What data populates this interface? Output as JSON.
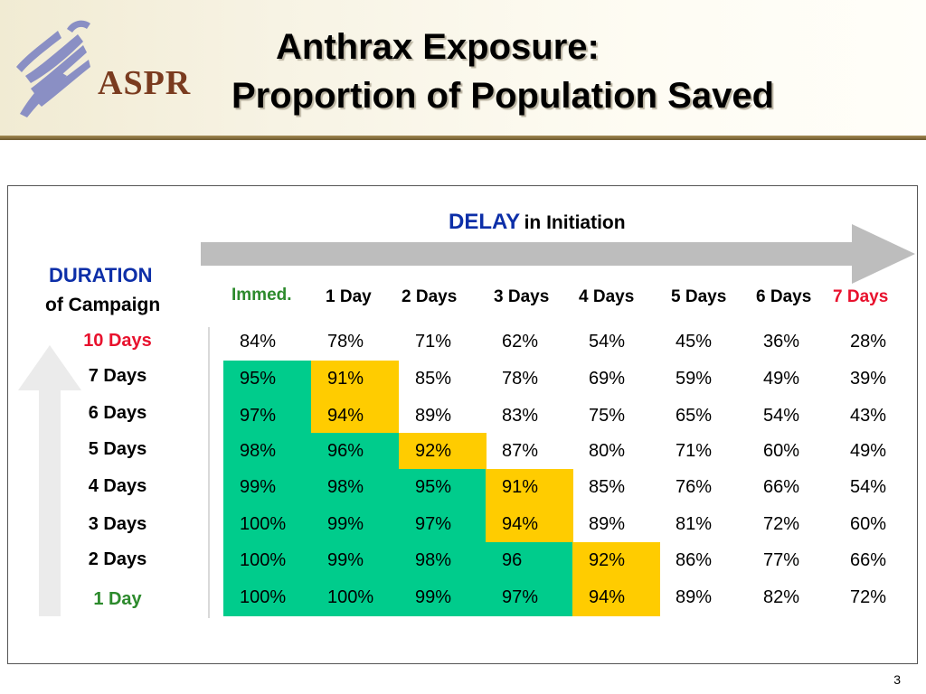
{
  "header": {
    "logo_text": "ASPR",
    "title_line1": "Anthrax Exposure:",
    "title_line2": "Proportion of Population Saved"
  },
  "delay_axis": {
    "label_emphasis": "DELAY",
    "label_rest": "in Initiation"
  },
  "duration_axis": {
    "label_emphasis": "DURATION",
    "label_rest": "of Campaign"
  },
  "colors": {
    "green": "#00cc8c",
    "yellow": "#ffcc00",
    "blue_label": "#0d2fa8",
    "red_label": "#e8112d",
    "green_label": "#2c8a2c",
    "arrow_gray": "#bdbdbd"
  },
  "columns": [
    {
      "label": "Immed.",
      "color": "#2c8a2c"
    },
    {
      "label": "1 Day",
      "color": "#000000"
    },
    {
      "label": "2 Days",
      "color": "#000000"
    },
    {
      "label": "3 Days",
      "color": "#000000"
    },
    {
      "label": "4 Days",
      "color": "#000000"
    },
    {
      "label": "5 Days",
      "color": "#000000"
    },
    {
      "label": "6 Days",
      "color": "#000000"
    },
    {
      "label": "7 Days",
      "color": "#e8112d"
    }
  ],
  "rows": [
    {
      "label": "10 Days",
      "color": "#e8112d",
      "cells": [
        {
          "v": "84%",
          "bg": "none"
        },
        {
          "v": "78%",
          "bg": "none"
        },
        {
          "v": "71%",
          "bg": "none"
        },
        {
          "v": "62%",
          "bg": "none"
        },
        {
          "v": "54%",
          "bg": "none"
        },
        {
          "v": "45%",
          "bg": "none"
        },
        {
          "v": "36%",
          "bg": "none"
        },
        {
          "v": "28%",
          "bg": "none"
        }
      ]
    },
    {
      "label": "7 Days",
      "color": "#000000",
      "cells": [
        {
          "v": "95%",
          "bg": "green"
        },
        {
          "v": "91%",
          "bg": "yellow"
        },
        {
          "v": "85%",
          "bg": "none"
        },
        {
          "v": "78%",
          "bg": "none"
        },
        {
          "v": "69%",
          "bg": "none"
        },
        {
          "v": "59%",
          "bg": "none"
        },
        {
          "v": "49%",
          "bg": "none"
        },
        {
          "v": "39%",
          "bg": "none"
        }
      ]
    },
    {
      "label": "6 Days",
      "color": "#000000",
      "cells": [
        {
          "v": "97%",
          "bg": "green"
        },
        {
          "v": "94%",
          "bg": "yellow"
        },
        {
          "v": "89%",
          "bg": "none"
        },
        {
          "v": "83%",
          "bg": "none"
        },
        {
          "v": "75%",
          "bg": "none"
        },
        {
          "v": "65%",
          "bg": "none"
        },
        {
          "v": "54%",
          "bg": "none"
        },
        {
          "v": "43%",
          "bg": "none"
        }
      ]
    },
    {
      "label": "5 Days",
      "color": "#000000",
      "cells": [
        {
          "v": "98%",
          "bg": "green"
        },
        {
          "v": "96%",
          "bg": "green"
        },
        {
          "v": "92%",
          "bg": "yellow"
        },
        {
          "v": "87%",
          "bg": "none"
        },
        {
          "v": "80%",
          "bg": "none"
        },
        {
          "v": "71%",
          "bg": "none"
        },
        {
          "v": "60%",
          "bg": "none"
        },
        {
          "v": "49%",
          "bg": "none"
        }
      ]
    },
    {
      "label": "4 Days",
      "color": "#000000",
      "cells": [
        {
          "v": "99%",
          "bg": "green"
        },
        {
          "v": "98%",
          "bg": "green"
        },
        {
          "v": "95%",
          "bg": "green"
        },
        {
          "v": "91%",
          "bg": "yellow"
        },
        {
          "v": "85%",
          "bg": "none"
        },
        {
          "v": "76%",
          "bg": "none"
        },
        {
          "v": "66%",
          "bg": "none"
        },
        {
          "v": "54%",
          "bg": "none"
        }
      ]
    },
    {
      "label": "3 Days",
      "color": "#000000",
      "cells": [
        {
          "v": "100%",
          "bg": "green"
        },
        {
          "v": "99%",
          "bg": "green"
        },
        {
          "v": "97%",
          "bg": "green"
        },
        {
          "v": "94%",
          "bg": "yellow"
        },
        {
          "v": "89%",
          "bg": "none"
        },
        {
          "v": "81%",
          "bg": "none"
        },
        {
          "v": "72%",
          "bg": "none"
        },
        {
          "v": "60%",
          "bg": "none"
        }
      ]
    },
    {
      "label": "2 Days",
      "color": "#000000",
      "cells": [
        {
          "v": "100%",
          "bg": "green"
        },
        {
          "v": "99%",
          "bg": "green"
        },
        {
          "v": "98%",
          "bg": "green"
        },
        {
          "v": "96",
          "bg": "green"
        },
        {
          "v": "92%",
          "bg": "yellow"
        },
        {
          "v": "86%",
          "bg": "none"
        },
        {
          "v": "77%",
          "bg": "none"
        },
        {
          "v": "66%",
          "bg": "none"
        }
      ]
    },
    {
      "label": "1 Day",
      "color": "#2c8a2c",
      "cells": [
        {
          "v": "100%",
          "bg": "green"
        },
        {
          "v": "100%",
          "bg": "green"
        },
        {
          "v": "99%",
          "bg": "green"
        },
        {
          "v": "97%",
          "bg": "green"
        },
        {
          "v": "94%",
          "bg": "yellow"
        },
        {
          "v": "89%",
          "bg": "none"
        },
        {
          "v": "82%",
          "bg": "none"
        },
        {
          "v": "72%",
          "bg": "none"
        }
      ]
    }
  ],
  "footer": {
    "page_number": "3"
  }
}
